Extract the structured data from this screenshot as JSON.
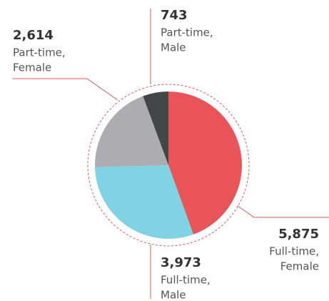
{
  "chart_data": {
    "type": "pie",
    "categories": [
      [
        "Full-time,",
        "Female"
      ],
      [
        "Full-time,",
        "Male"
      ],
      [
        "Part-time,",
        "Female"
      ],
      [
        "Part-time,",
        "Male"
      ]
    ],
    "values": [
      5875,
      3973,
      2614,
      743
    ],
    "value_labels": [
      "5,875",
      "3,973",
      "2,614",
      "743"
    ],
    "colors": [
      "#e85457",
      "#80d3e4",
      "#adadb1",
      "#434547"
    ]
  }
}
